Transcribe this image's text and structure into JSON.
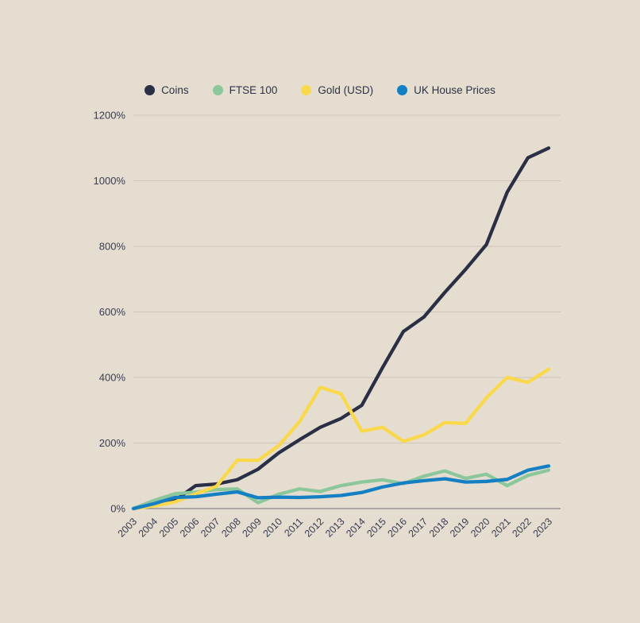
{
  "page": {
    "background_color": "#e5ddcf",
    "text_color": "#383c52",
    "gridline_color": "#ccc5b8",
    "axis_line_color": "#73737e"
  },
  "legend": {
    "items": [
      {
        "label": "Coins",
        "slug": "coins",
        "color": "#2b2f45"
      },
      {
        "label": "FTSE 100",
        "slug": "ftse-100",
        "color": "#8cc79c"
      },
      {
        "label": "Gold (USD)",
        "slug": "gold-usd",
        "color": "#fad84c"
      },
      {
        "label": "UK House Prices",
        "slug": "uk-house-prices",
        "color": "#157fc4"
      }
    ]
  },
  "chart_data": {
    "type": "line",
    "title": "",
    "xlabel": "",
    "ylabel": "",
    "categories": [
      "2003",
      "2004",
      "2005",
      "2006",
      "2007",
      "2008",
      "2009",
      "2010",
      "2011",
      "2012",
      "2013",
      "2014",
      "2015",
      "2016",
      "2017",
      "2018",
      "2019",
      "2020",
      "2021",
      "2022",
      "2023"
    ],
    "series": [
      {
        "name": "Coins",
        "color": "#2b2f45",
        "values": [
          0,
          10,
          25,
          70,
          75,
          88,
          120,
          170,
          210,
          248,
          275,
          315,
          430,
          540,
          585,
          660,
          730,
          805,
          965,
          1070,
          1100
        ]
      },
      {
        "name": "FTSE 100",
        "color": "#8cc79c",
        "values": [
          0,
          25,
          45,
          50,
          58,
          60,
          18,
          44,
          60,
          52,
          70,
          81,
          88,
          76,
          99,
          115,
          92,
          105,
          70,
          101,
          117
        ]
      },
      {
        "name": "Gold (USD)",
        "color": "#fad84c",
        "values": [
          0,
          8,
          20,
          45,
          68,
          148,
          147,
          192,
          265,
          370,
          350,
          236,
          248,
          205,
          225,
          262,
          260,
          338,
          400,
          385,
          425
        ]
      },
      {
        "name": "UK House Prices",
        "color": "#157fc4",
        "values": [
          0,
          15,
          34,
          36,
          44,
          51,
          33,
          35,
          34,
          36,
          40,
          49,
          66,
          78,
          85,
          91,
          81,
          83,
          89,
          117,
          130
        ]
      }
    ],
    "yticks": [
      0,
      200,
      400,
      600,
      800,
      1000,
      1200
    ],
    "ytick_suffix": "%",
    "ylim": [
      0,
      1200
    ],
    "grid": true,
    "legend_position": "top"
  }
}
